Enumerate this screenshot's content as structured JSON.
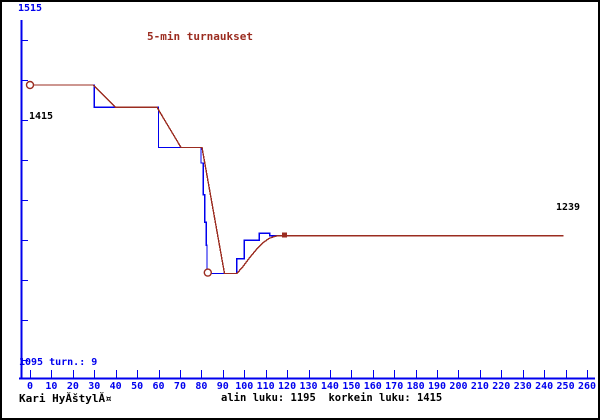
{
  "colors": {
    "background": "#ffffff",
    "axis_blue": "#0000ee",
    "series_blue": "#0000ee",
    "series_red": "#9b2c20",
    "text_black": "#000000",
    "border_black": "#000000"
  },
  "labels": {
    "y_top": "1515",
    "y_mid": "1415",
    "bottom_left": "1095 turn.: 9",
    "final_value": "1239"
  },
  "footer": {
    "player_name": "Kari HyĂštylĂ¤",
    "summary": "alin luku: 1195  korkein luku: 1415"
  },
  "chart_data": {
    "type": "line",
    "title": "5-min turnaukset",
    "xlabel": "",
    "ylabel": "",
    "grid": false,
    "x_axis": {
      "min": 0,
      "max": 260,
      "tick_step": 10
    },
    "y_axis": {
      "min": 1095,
      "max": 1515,
      "top_label": "1515",
      "mid_label": "1415",
      "bottom_label": "1095",
      "tick_count": 9
    },
    "x_ticks": [
      0,
      10,
      20,
      30,
      40,
      50,
      60,
      70,
      80,
      90,
      100,
      110,
      120,
      130,
      140,
      150,
      160,
      170,
      180,
      190,
      200,
      210,
      220,
      230,
      240,
      250,
      260
    ],
    "annotations": {
      "final_value": 1239,
      "min_value": 1195,
      "max_value": 1415,
      "tournament_count": 9
    },
    "series": [
      {
        "name": "rating-steps",
        "color_key": "series_blue",
        "points": [
          [
            0,
            1415
          ],
          [
            30,
            1415
          ],
          [
            30,
            1389
          ],
          [
            60,
            1389
          ],
          [
            60,
            1342
          ],
          [
            79.8,
            1342
          ],
          [
            79.8,
            1324
          ],
          [
            80.8,
            1324
          ],
          [
            80.8,
            1287
          ],
          [
            81.5,
            1287
          ],
          [
            81.5,
            1255
          ],
          [
            82.2,
            1255
          ],
          [
            82.2,
            1228
          ],
          [
            82.6,
            1228
          ],
          [
            82.6,
            1199
          ],
          [
            83.3,
            1195
          ],
          [
            96.5,
            1195
          ],
          [
            96.5,
            1212
          ],
          [
            100,
            1212
          ],
          [
            100,
            1234
          ],
          [
            107,
            1234
          ],
          [
            107,
            1242
          ],
          [
            112,
            1242
          ],
          [
            112,
            1239
          ],
          [
            116,
            1239
          ]
        ]
      },
      {
        "name": "rating-trend",
        "color_key": "series_red",
        "points": [
          [
            0,
            1415
          ],
          [
            29.4,
            1415
          ],
          [
            40,
            1389
          ],
          [
            59.3,
            1389
          ],
          [
            70.5,
            1342
          ],
          [
            80.3,
            1342
          ],
          [
            90.8,
            1195
          ],
          [
            96.6,
            1195
          ],
          [
            99.4,
            1203
          ],
          [
            102.7,
            1214
          ],
          [
            106,
            1224
          ],
          [
            108.8,
            1231
          ],
          [
            111.6,
            1236
          ],
          [
            113.9,
            1238
          ],
          [
            115.3,
            1239
          ],
          [
            249,
            1239
          ]
        ]
      }
    ],
    "markers": [
      {
        "shape": "circle",
        "x": 0,
        "y": 1415,
        "name": "start-point-marker"
      },
      {
        "shape": "circle",
        "x": 83,
        "y": 1196,
        "name": "minimum-point-marker"
      },
      {
        "shape": "square",
        "x": 118.8,
        "y": 1240,
        "name": "current-point-marker"
      }
    ]
  }
}
